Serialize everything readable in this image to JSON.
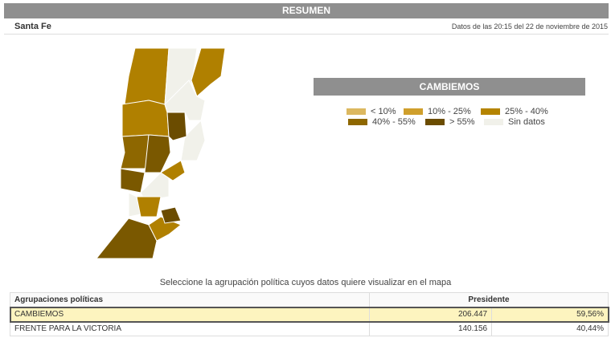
{
  "header": {
    "title": "RESUMEN",
    "province": "Santa Fe",
    "timestamp": "Datos de las 20:15 del 22 de noviembre de 2015"
  },
  "legend": {
    "title": "CAMBIEMOS",
    "items": [
      {
        "label": "< 10%",
        "color": "#dcb860"
      },
      {
        "label": "10% - 25%",
        "color": "#cf9f2c"
      },
      {
        "label": "25% - 40%",
        "color": "#b58400"
      },
      {
        "label": "40% - 55%",
        "color": "#8e6700"
      },
      {
        "label": "> 55%",
        "color": "#6b4c00"
      },
      {
        "label": "Sin datos",
        "color": "#f1f1ea"
      }
    ]
  },
  "instruction": "Seleccione la agrupación política cuyos datos quiere visualizar en el mapa",
  "table": {
    "headers": [
      "Agrupaciones políticas",
      "Presidente"
    ],
    "rows": [
      [
        "CAMBIEMOS",
        "206.447",
        "59,56%"
      ],
      [
        "FRENTE PARA LA VICTORIA",
        "140.156",
        "40,44%"
      ]
    ]
  }
}
